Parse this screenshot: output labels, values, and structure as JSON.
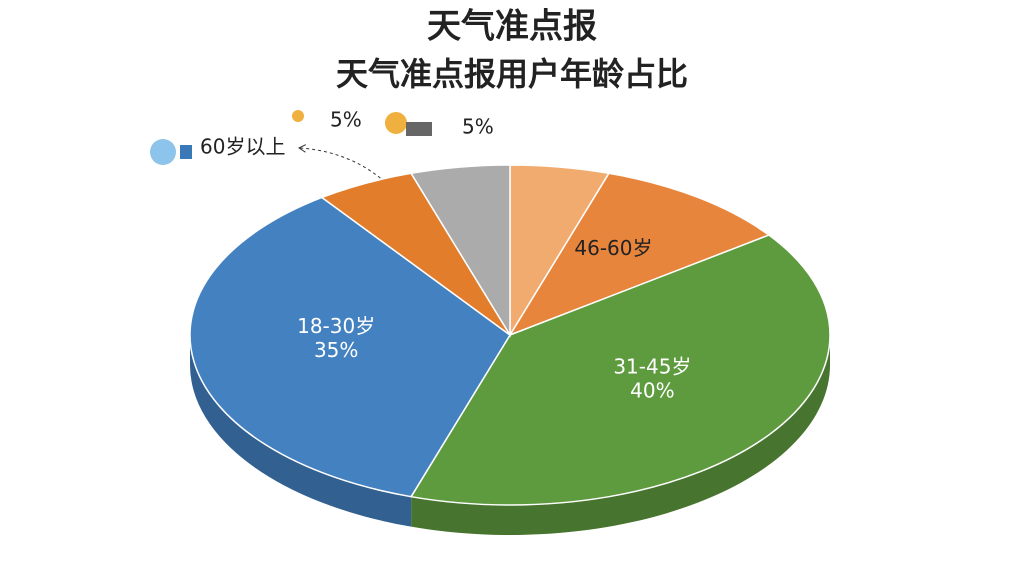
{
  "chart_data": {
    "type": "pie3d",
    "title": "天气准点报",
    "subtitle": "天气准点报用户年龄占比",
    "categories": [
      null,
      "46-60岁",
      "31-45岁",
      "18-30岁",
      "60岁以上",
      null
    ],
    "values": [
      5,
      10,
      40,
      35,
      5,
      5
    ],
    "value_labels": [
      "5%",
      null,
      "40%",
      "35%",
      null,
      "5%"
    ],
    "colors": [
      "#f2ab6e",
      "#e8853c",
      "#5e9b3e",
      "#4381c1",
      "#e27d2c",
      "#ababab"
    ]
  }
}
